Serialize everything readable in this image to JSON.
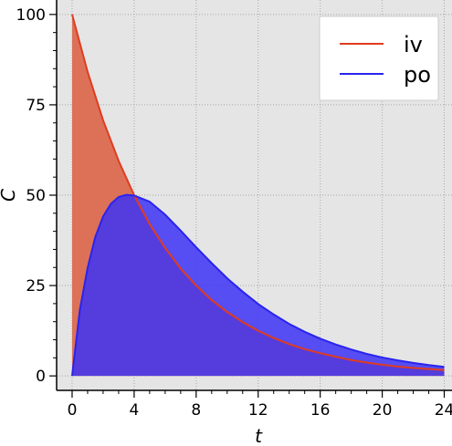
{
  "chart_data": {
    "type": "area",
    "xlabel": "t",
    "ylabel": "C",
    "xlim": [
      -1,
      24.5
    ],
    "ylim": [
      -4,
      104
    ],
    "x_ticks": [
      0,
      4,
      8,
      12,
      16,
      20,
      24
    ],
    "x_tick_labels": [
      "0",
      "4",
      "8",
      "12",
      "16",
      "20",
      "24"
    ],
    "y_ticks": [
      0,
      25,
      50,
      75,
      100
    ],
    "y_tick_labels": [
      "0",
      "25",
      "50",
      "75",
      "100"
    ],
    "grid": true,
    "legend_position": "top-right",
    "background_color": "#e5e5e5",
    "series": [
      {
        "name": "iv",
        "line_color": "#e03c1f",
        "fill_color": "#db6a50",
        "x": [
          0,
          1,
          2,
          3,
          4,
          5,
          6,
          7,
          8,
          9,
          10,
          11,
          12,
          13,
          14,
          15,
          16,
          17,
          18,
          19,
          20,
          21,
          22,
          23,
          24
        ],
        "y": [
          100,
          84.1,
          70.7,
          59.5,
          50.0,
          42.0,
          35.4,
          29.7,
          25.0,
          21.0,
          17.7,
          14.9,
          12.5,
          10.5,
          8.8,
          7.4,
          6.3,
          5.3,
          4.4,
          3.7,
          3.1,
          2.6,
          2.2,
          1.9,
          1.6
        ]
      },
      {
        "name": "po",
        "line_color": "#2a24ee",
        "fill_color": "#3d32f5",
        "x": [
          0,
          0.5,
          1,
          1.5,
          2,
          2.5,
          3,
          3.5,
          4,
          5,
          6,
          7,
          8,
          9,
          10,
          11,
          12,
          13,
          14,
          15,
          16,
          17,
          18,
          19,
          20,
          21,
          22,
          23,
          24
        ],
        "y": [
          0,
          18.3,
          29.9,
          38.5,
          44.1,
          47.6,
          49.5,
          50.1,
          49.9,
          48.2,
          44.6,
          40.2,
          35.6,
          31.2,
          27.0,
          23.3,
          19.9,
          17.0,
          14.4,
          12.2,
          10.3,
          8.7,
          7.3,
          6.1,
          5.1,
          4.3,
          3.6,
          3.0,
          2.5
        ]
      }
    ]
  }
}
